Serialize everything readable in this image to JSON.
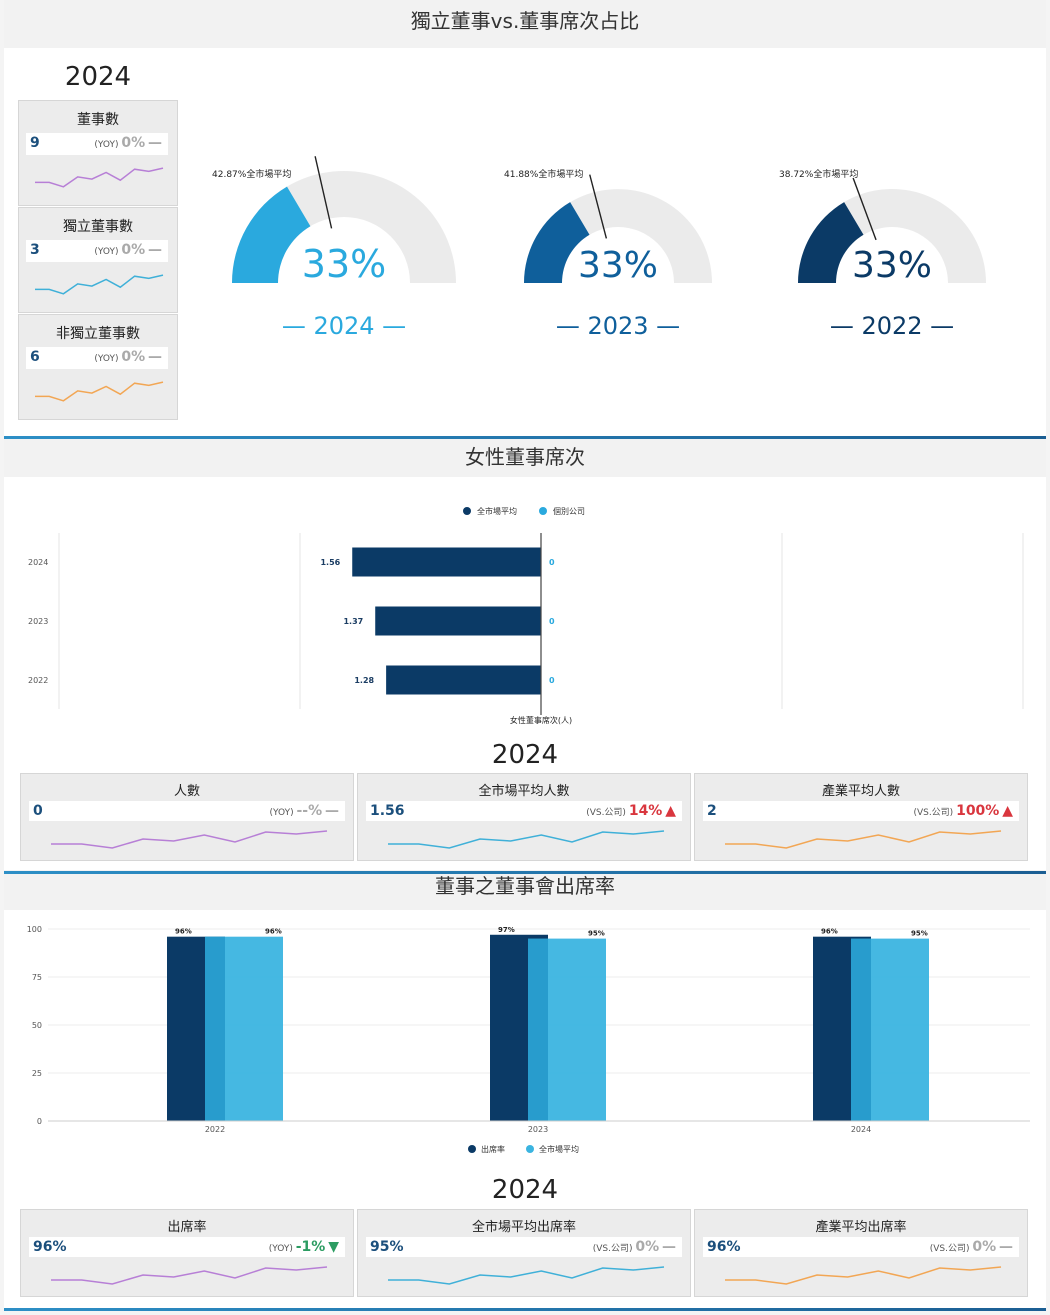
{
  "section1": {
    "title": "獨立董事vs.董事席次占比",
    "year": "2024",
    "cards": [
      {
        "label": "董事數",
        "value": "9",
        "yoy_prefix": "(YOY)",
        "yoy": "0%",
        "trend": "—",
        "color": "#b77fd6"
      },
      {
        "label": "獨立董事數",
        "value": "3",
        "yoy_prefix": "(YOY)",
        "yoy": "0%",
        "trend": "—",
        "color": "#3fb0d8"
      },
      {
        "label": "非獨立董事數",
        "value": "6",
        "yoy_prefix": "(YOY)",
        "yoy": "0%",
        "trend": "—",
        "color": "#f2a654"
      }
    ],
    "gauges": [
      {
        "year": "2024",
        "value": 33,
        "label": "33%",
        "market_avg": 42.87,
        "note": "42.87%全市場平均",
        "color": "#2aa9de",
        "text_color": "#2aa9de",
        "year_label": "— 2024 —"
      },
      {
        "year": "2023",
        "value": 33,
        "label": "33%",
        "market_avg": 41.88,
        "note": "41.88%全市場平均",
        "color": "#0f5f9b",
        "text_color": "#0f5f9b",
        "year_label": "— 2023 —"
      },
      {
        "year": "2022",
        "value": 33,
        "label": "33%",
        "market_avg": 38.72,
        "note": "38.72%全市場平均",
        "color": "#0b3a66",
        "text_color": "#0b3a66",
        "year_label": "— 2022 —"
      }
    ]
  },
  "section2": {
    "title": "女性董事席次",
    "legend": [
      "全市場平均",
      "個別公司"
    ],
    "xlabel": "女性董事席次(人)",
    "year": "2024",
    "cards": [
      {
        "label": "人數",
        "value": "0",
        "yoy_prefix": "(YOY)",
        "yoy": "--%",
        "trend": "—",
        "color": "#b77fd6",
        "cls": ""
      },
      {
        "label": "全市場平均人數",
        "value": "1.56",
        "yoy_prefix": "(VS.公司)",
        "yoy": "14%",
        "trend": "▲",
        "color": "#3fb0d8",
        "cls": "red"
      },
      {
        "label": "產業平均人數",
        "value": "2",
        "yoy_prefix": "(VS.公司)",
        "yoy": "100%",
        "trend": "▲",
        "color": "#f2a654",
        "cls": "red"
      }
    ]
  },
  "section3": {
    "title": "董事之董事會出席率",
    "legend": [
      "出席率",
      "全市場平均"
    ],
    "year": "2024",
    "cards": [
      {
        "label": "出席率",
        "value": "96%",
        "yoy_prefix": "(YOY)",
        "yoy": "-1%",
        "trend": "▼",
        "color": "#b77fd6",
        "cls": "green"
      },
      {
        "label": "全市場平均出席率",
        "value": "95%",
        "yoy_prefix": "(VS.公司)",
        "yoy": "0%",
        "trend": "—",
        "color": "#3fb0d8",
        "cls": ""
      },
      {
        "label": "產業平均出席率",
        "value": "96%",
        "yoy_prefix": "(VS.公司)",
        "yoy": "0%",
        "trend": "—",
        "color": "#f2a654",
        "cls": ""
      }
    ]
  },
  "chart_data": [
    {
      "type": "bar",
      "orientation": "horizontal-diverging",
      "categories": [
        "2024",
        "2023",
        "2022"
      ],
      "series": [
        {
          "name": "全市場平均",
          "values": [
            1.56,
            1.37,
            1.28
          ],
          "color": "#0b3a66"
        },
        {
          "name": "個別公司",
          "values": [
            0,
            0,
            0
          ],
          "color": "#2aa9de"
        }
      ],
      "xlabel": "女性董事席次(人)"
    },
    {
      "type": "bar",
      "categories": [
        "2022",
        "2023",
        "2024"
      ],
      "series": [
        {
          "name": "出席率",
          "values": [
            96,
            97,
            96
          ],
          "labels": [
            "96%",
            "97%",
            "96%"
          ],
          "color": "#0b3a66"
        },
        {
          "name": "全市場平均",
          "values": [
            96,
            95,
            95
          ],
          "labels": [
            "96%",
            "95%",
            "95%"
          ],
          "color": "#3bb4e0"
        }
      ],
      "yticks": [
        "0",
        "25",
        "50",
        "75",
        "100"
      ],
      "ylim": [
        0,
        100
      ]
    }
  ]
}
